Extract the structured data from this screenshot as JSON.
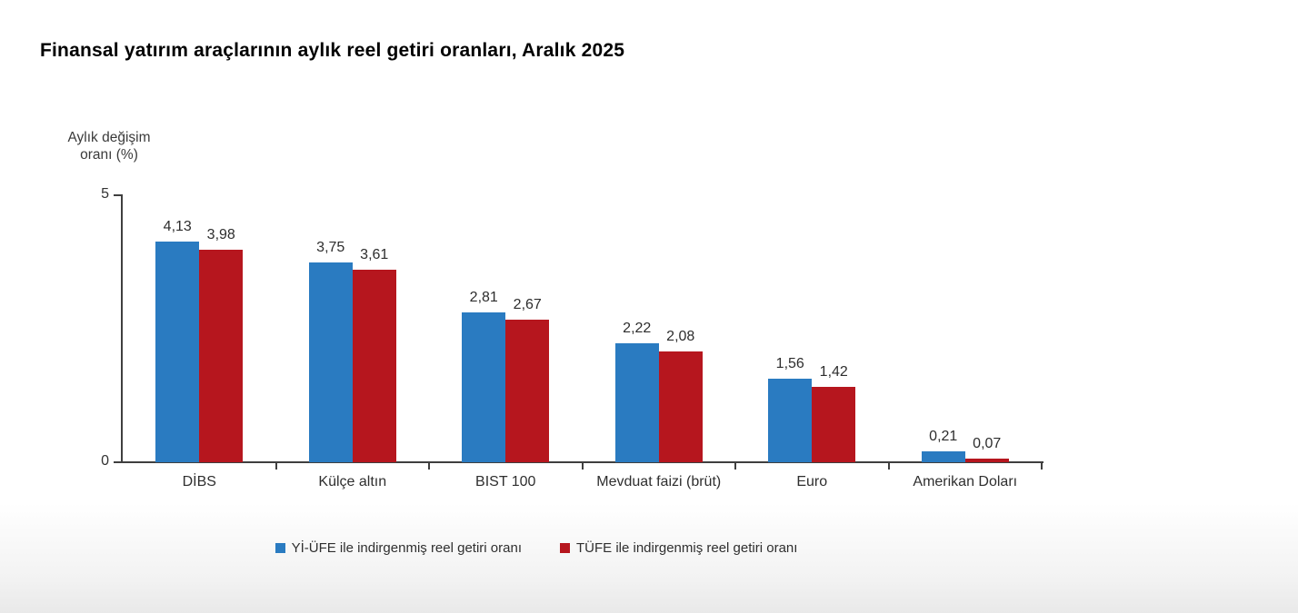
{
  "title": "Finansal yatırım araçlarının aylık reel getiri oranları, Aralık 2025",
  "y_axis": {
    "label_line1": "Aylık değişim",
    "label_line2": "oranı (%)",
    "max_tick": "5",
    "min_tick": "0"
  },
  "colors": {
    "series_yiufe": "#2A7BC1",
    "series_tufe": "#B6161E",
    "axis": "#3f3f3f",
    "text": "#2d2d2d"
  },
  "legend": [
    {
      "label": "Yİ-ÜFE ile indirgenmiş reel getiri oranı",
      "color": "#2A7BC1"
    },
    {
      "label": "TÜFE ile indirgenmiş reel getiri oranı",
      "color": "#B6161E"
    }
  ],
  "chart_data": {
    "type": "bar",
    "title": "Finansal yatırım araçlarının aylık reel getiri oranları, Aralık 2025",
    "categories": [
      "DİBS",
      "Külçe altın",
      "BIST 100",
      "Mevduat faizi (brüt)",
      "Euro",
      "Amerikan Doları"
    ],
    "series": [
      {
        "name": "Yİ-ÜFE ile indirgenmiş reel getiri oranı",
        "color": "#2A7BC1",
        "values": [
          4.13,
          3.75,
          2.81,
          2.22,
          1.56,
          0.21
        ],
        "labels": [
          "4,13",
          "3,75",
          "2,81",
          "2,22",
          "1,56",
          "0,21"
        ]
      },
      {
        "name": "TÜFE ile indirgenmiş reel getiri oranı",
        "color": "#B6161E",
        "values": [
          3.98,
          3.61,
          2.67,
          2.08,
          1.42,
          0.07
        ],
        "labels": [
          "3,98",
          "3,61",
          "2,67",
          "2,08",
          "1,42",
          "0,07"
        ]
      }
    ],
    "xlabel": "",
    "ylabel": "Aylık değişim oranı (%)",
    "ylim": [
      0,
      5
    ],
    "yticks": [
      0,
      5
    ],
    "grid": false,
    "value_labels": true,
    "legend_position": "bottom"
  }
}
